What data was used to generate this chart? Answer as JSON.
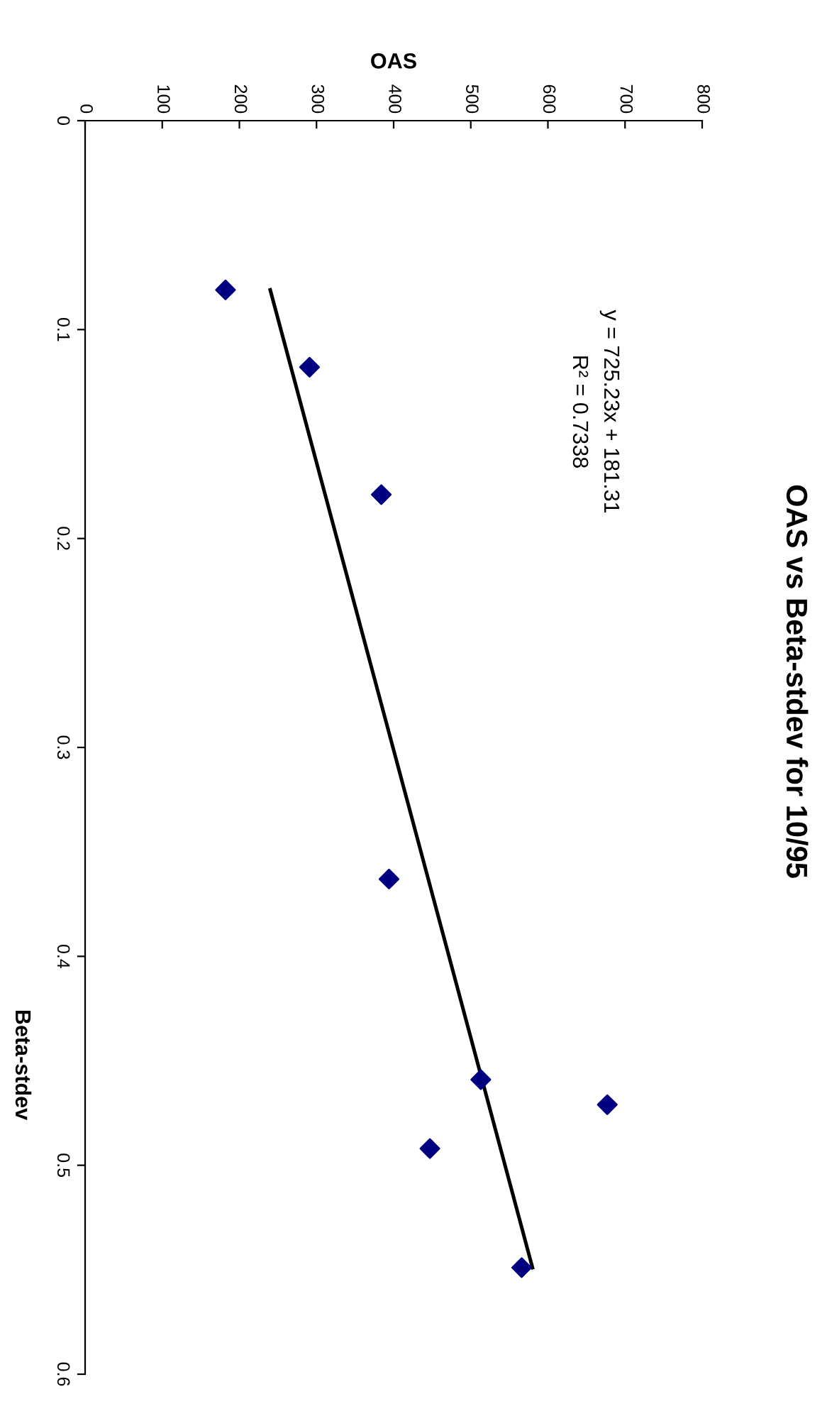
{
  "chart_data": {
    "type": "scatter",
    "title": "OAS vs Beta-stdev for 10/95",
    "xlabel": "OAS",
    "ylabel": "Beta-stdev",
    "annotations": [
      "y = 725.23x + 181.31",
      "R² = 0.7338"
    ],
    "series": [
      {
        "color": "#000080",
        "marker": "diamond",
        "x": [
          182,
          291,
          384,
          394,
          513,
          677,
          447,
          566
        ],
        "values": [
          0.081,
          0.118,
          0.179,
          0.363,
          0.459,
          0.471,
          0.492,
          0.549
        ]
      },
      {
        "type": "line",
        "color": "#000000",
        "x": [
          240,
          580
        ],
        "values": [
          0.081,
          0.549
        ]
      }
    ],
    "xlim": [
      0,
      800
    ],
    "xticks": [
      0,
      100,
      200,
      300,
      400,
      500,
      600,
      700,
      800
    ],
    "ylim": [
      0.6,
      0
    ],
    "yticks": [
      0,
      0.1,
      0.2,
      0.3,
      0.4,
      0.5,
      0.6
    ],
    "grid": false,
    "legend": false
  }
}
